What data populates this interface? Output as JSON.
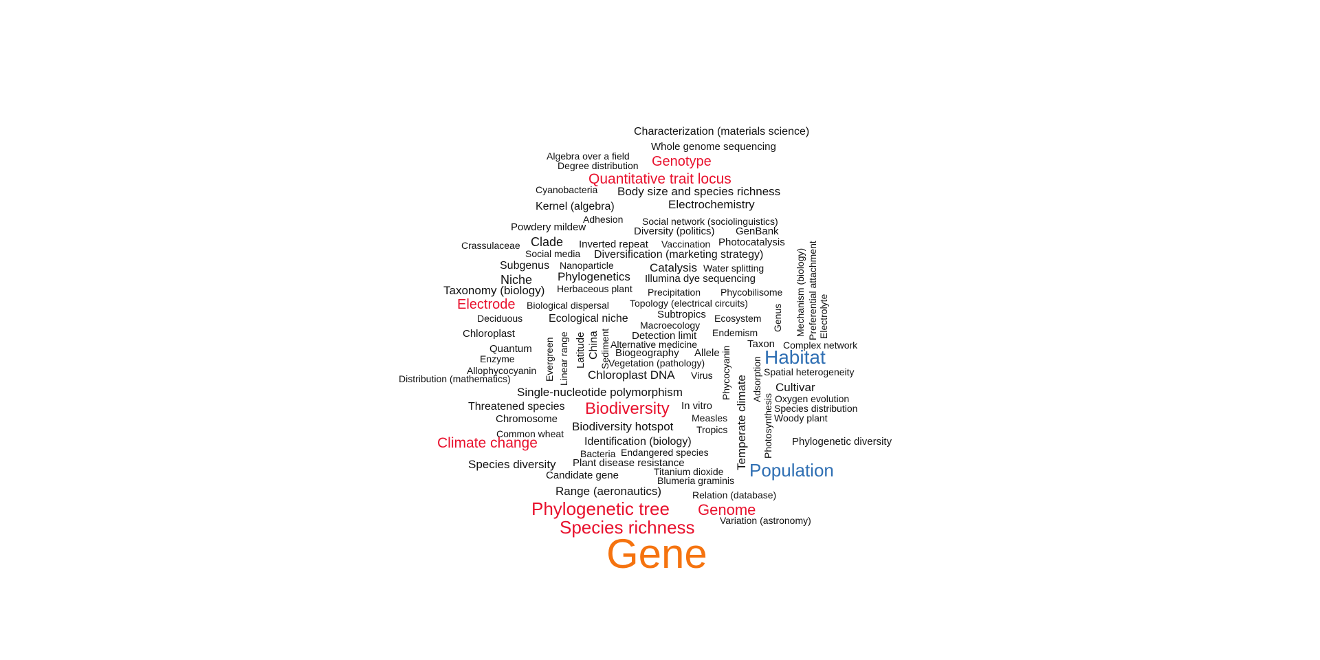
{
  "colors": {
    "black": "#111111",
    "red": "#e8112d",
    "blue": "#2f6fb3",
    "orange": "#f5730f",
    "background": "#ffffff"
  },
  "words": [
    "Characterization (materials science)",
    "Whole genome sequencing",
    "Algebra over a field",
    "Genotype",
    "Degree distribution",
    "Quantitative trait locus",
    "Cyanobacteria",
    "Body size and species richness",
    "Kernel (algebra)",
    "Electrochemistry",
    "Adhesion",
    "Social network (sociolinguistics)",
    "Powdery mildew",
    "Diversity (politics)",
    "GenBank",
    "Crassulaceae",
    "Clade",
    "Inverted repeat",
    "Vaccination",
    "Photocatalysis",
    "Social media",
    "Diversification (marketing strategy)",
    "Subgenus",
    "Nanoparticle",
    "Catalysis",
    "Water splitting",
    "Niche",
    "Phylogenetics",
    "Illumina dye sequencing",
    "Taxonomy (biology)",
    "Herbaceous plant",
    "Precipitation",
    "Phycobilisome",
    "Electrode",
    "Biological dispersal",
    "Topology (electrical circuits)",
    "Deciduous",
    "Subtropics",
    "Ecological niche",
    "Ecosystem",
    "Macroecology",
    "Chloroplast",
    "Endemism",
    "Detection limit",
    "Alternative medicine",
    "Taxon",
    "Complex network",
    "Quantum",
    "Biogeography",
    "Allele",
    "Habitat",
    "Enzyme",
    "Vegetation (pathology)",
    "Allophycocyanin",
    "Chloroplast DNA",
    "Virus",
    "Spatial heterogeneity",
    "Distribution (mathematics)",
    "Cultivar",
    "Single-nucleotide polymorphism",
    "Oxygen evolution",
    "Threatened species",
    "Biodiversity",
    "In vitro",
    "Species distribution",
    "Chromosome",
    "Measles",
    "Woody plant",
    "Biodiversity hotspot",
    "Tropics",
    "Common wheat",
    "Climate change",
    "Identification (biology)",
    "Phylogenetic diversity",
    "Bacteria",
    "Endangered species",
    "Species diversity",
    "Plant disease resistance",
    "Population",
    "Candidate gene",
    "Titanium dioxide",
    "Blumeria graminis",
    "Range (aeronautics)",
    "Relation (database)",
    "Phylogenetic tree",
    "Genome",
    "Variation (astronomy)",
    "Species richness",
    "Gene",
    "Mechanism (biology)",
    "Preferential attachment",
    "Electrolyte",
    "Genus",
    "Evergreen",
    "Linear range",
    "Latitude",
    "China",
    "Sediment",
    "Phycocyanin",
    "Temperate climate",
    "Adsorption",
    "Photosynthesis"
  ]
}
